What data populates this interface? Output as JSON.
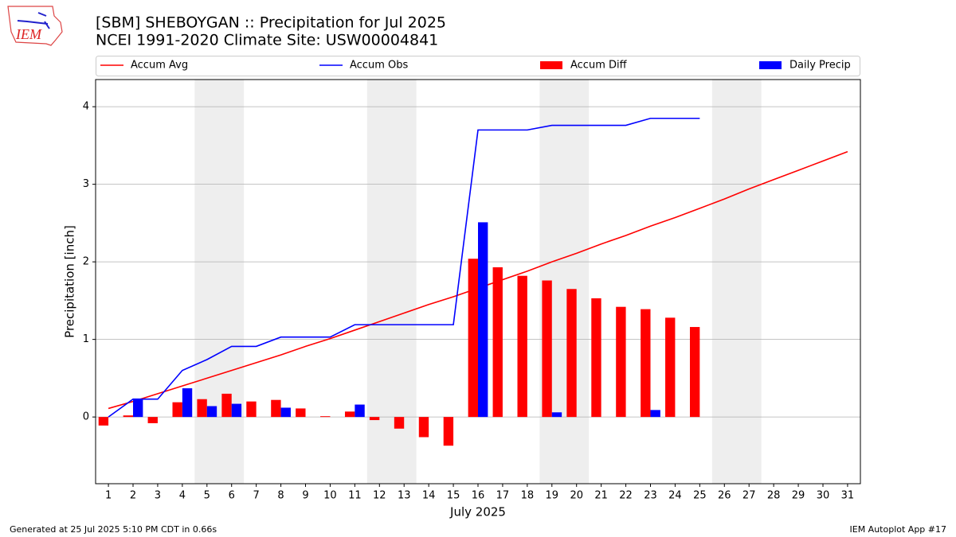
{
  "logo": "IEM",
  "footer_left": "Generated at 25 Jul 2025 5:10 PM CDT in 0.66s",
  "footer_right": "IEM Autoplot App #17",
  "chart_data": {
    "type": "bar_line",
    "title": "[SBM] SHEBOYGAN :: Precipitation for Jul 2025",
    "subtitle": "NCEI 1991-2020 Climate Site: USW00004841",
    "x_label": "July 2025",
    "y_label": "Precipitation [inch]",
    "x": [
      1,
      2,
      3,
      4,
      5,
      6,
      7,
      8,
      9,
      10,
      11,
      12,
      13,
      14,
      15,
      16,
      17,
      18,
      19,
      20,
      21,
      22,
      23,
      24,
      25,
      26,
      27,
      28,
      29,
      30,
      31
    ],
    "xlim": [
      0.48,
      31.52
    ],
    "xticks": [
      1,
      2,
      3,
      4,
      5,
      6,
      7,
      8,
      9,
      10,
      11,
      12,
      13,
      14,
      15,
      16,
      17,
      18,
      19,
      20,
      21,
      22,
      23,
      24,
      25,
      26,
      27,
      28,
      29,
      30,
      31
    ],
    "ylim": [
      -0.86,
      4.35
    ],
    "yticks": [
      0,
      1,
      2,
      3,
      4
    ],
    "grid": true,
    "shaded_ranges": [
      [
        4.5,
        6.5
      ],
      [
        11.5,
        13.5
      ],
      [
        18.5,
        20.5
      ],
      [
        25.5,
        27.5
      ]
    ],
    "series": [
      {
        "name": "Accum Avg",
        "type": "line",
        "color": "#ff0000",
        "values": [
          0.11,
          0.2,
          0.3,
          0.4,
          0.5,
          0.6,
          0.7,
          0.8,
          0.91,
          1.01,
          1.12,
          1.23,
          1.34,
          1.45,
          1.55,
          1.66,
          1.77,
          1.88,
          2.0,
          2.11,
          2.23,
          2.34,
          2.46,
          2.57,
          2.69,
          2.81,
          2.94,
          3.06,
          3.18,
          3.3,
          3.42
        ]
      },
      {
        "name": "Accum Obs",
        "type": "line",
        "color": "#0000ff",
        "values": [
          0,
          0.23,
          0.23,
          0.6,
          0.74,
          0.91,
          0.91,
          1.03,
          1.03,
          1.03,
          1.19,
          1.19,
          1.19,
          1.19,
          1.19,
          3.7,
          3.7,
          3.7,
          3.76,
          3.76,
          3.76,
          3.76,
          3.85,
          3.85,
          3.85,
          null,
          null,
          null,
          null,
          null,
          null
        ]
      },
      {
        "name": "Accum Diff",
        "type": "bar",
        "color": "#ff0000",
        "values": [
          -0.11,
          0.02,
          -0.08,
          0.19,
          0.23,
          0.3,
          0.2,
          0.22,
          0.11,
          0.01,
          0.07,
          -0.04,
          -0.15,
          -0.26,
          -0.37,
          2.04,
          1.93,
          1.82,
          1.76,
          1.65,
          1.53,
          1.42,
          1.39,
          1.28,
          1.16,
          null,
          null,
          null,
          null,
          null,
          null
        ]
      },
      {
        "name": "Daily Precip",
        "type": "bar",
        "color": "#0000ff",
        "values": [
          0,
          0.23,
          0,
          0.37,
          0.14,
          0.17,
          0,
          0.12,
          0,
          0,
          0.16,
          0,
          0,
          0,
          0,
          2.51,
          0,
          0,
          0.06,
          0,
          0,
          0,
          0.09,
          0,
          0,
          null,
          null,
          null,
          null,
          null,
          null
        ]
      }
    ]
  }
}
